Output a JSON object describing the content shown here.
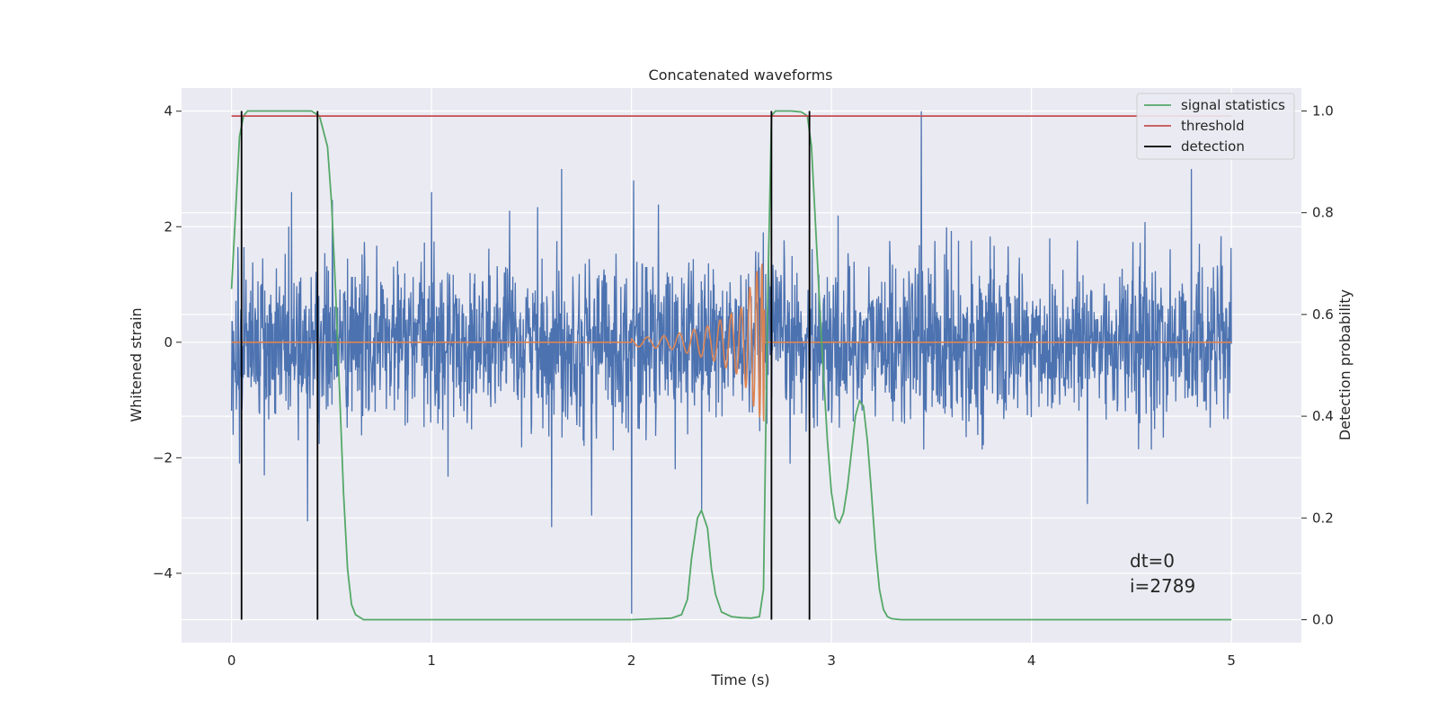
{
  "chart_data": {
    "type": "line",
    "title": "Concatenated waveforms",
    "xlabel": "Time (s)",
    "ylabel_left": "Whitened strain",
    "ylabel_right": "Detection probability",
    "xlim": [
      -0.25,
      5.35
    ],
    "ylim_left": [
      -5.2,
      4.4
    ],
    "ylim_right": [
      -0.045,
      1.045
    ],
    "x_ticks": [
      0,
      1,
      2,
      3,
      4,
      5
    ],
    "y_ticks_left": [
      -4,
      -2,
      0,
      2,
      4
    ],
    "y_ticks_right": [
      0.0,
      0.2,
      0.4,
      0.6,
      0.8,
      1.0
    ],
    "x_tick_labels": [
      "0",
      "1",
      "2",
      "3",
      "4",
      "5"
    ],
    "y_tick_labels_left": [
      "−4",
      "−2",
      "0",
      "2",
      "4"
    ],
    "y_tick_labels_right": [
      "0.0",
      "0.2",
      "0.4",
      "0.6",
      "0.8",
      "1.0"
    ],
    "grid": true,
    "legend_position": "top-right",
    "series": [
      {
        "name": "",
        "axis": "left",
        "color": "#4c72b0",
        "kind": "noise",
        "x_range": [
          0,
          5
        ],
        "envelope_std": 0.7,
        "spikes": [
          {
            "x": 0.04,
            "y": -2.1
          },
          {
            "x": 0.3,
            "y": 2.6
          },
          {
            "x": 0.38,
            "y": -3.1
          },
          {
            "x": 1.0,
            "y": 2.6
          },
          {
            "x": 1.6,
            "y": -3.2
          },
          {
            "x": 1.65,
            "y": 3.0
          },
          {
            "x": 1.8,
            "y": -3.0
          },
          {
            "x": 2.0,
            "y": -4.7
          },
          {
            "x": 2.01,
            "y": 2.8
          },
          {
            "x": 2.35,
            "y": -2.9
          },
          {
            "x": 3.45,
            "y": 4.0
          },
          {
            "x": 4.8,
            "y": 3.0
          },
          {
            "x": 4.28,
            "y": -2.8
          }
        ]
      },
      {
        "name": "",
        "axis": "left",
        "color": "#dd8452",
        "kind": "chirp",
        "x": [
          0,
          2.0,
          2.0,
          2.2,
          2.4,
          2.55,
          2.62,
          2.66,
          2.7,
          5
        ],
        "amplitude": [
          0,
          0,
          0.07,
          0.12,
          0.3,
          0.6,
          1.2,
          1.4,
          0,
          0
        ]
      },
      {
        "name": "signal statistics",
        "axis": "right",
        "color": "#55a868",
        "x": [
          0.0,
          0.02,
          0.04,
          0.06,
          0.08,
          0.12,
          0.4,
          0.44,
          0.48,
          0.5,
          0.52,
          0.54,
          0.56,
          0.58,
          0.6,
          0.62,
          0.66,
          0.8,
          2.0,
          2.2,
          2.25,
          2.28,
          2.3,
          2.33,
          2.35,
          2.38,
          2.4,
          2.42,
          2.45,
          2.5,
          2.55,
          2.6,
          2.64,
          2.66,
          2.68,
          2.7,
          2.72,
          2.74,
          2.8,
          2.85,
          2.88,
          2.9,
          2.92,
          2.95,
          2.98,
          3.0,
          3.02,
          3.04,
          3.06,
          3.08,
          3.1,
          3.12,
          3.14,
          3.16,
          3.18,
          3.2,
          3.22,
          3.24,
          3.26,
          3.28,
          3.3,
          3.35,
          4.0,
          5.0
        ],
        "y": [
          0.65,
          0.8,
          0.95,
          0.99,
          1.0,
          1.0,
          1.0,
          0.99,
          0.93,
          0.82,
          0.65,
          0.45,
          0.25,
          0.1,
          0.03,
          0.01,
          0.0,
          0.0,
          0.0,
          0.003,
          0.01,
          0.04,
          0.12,
          0.2,
          0.215,
          0.18,
          0.1,
          0.05,
          0.015,
          0.006,
          0.004,
          0.003,
          0.006,
          0.06,
          0.6,
          0.99,
          1.0,
          1.0,
          1.0,
          0.998,
          0.99,
          0.93,
          0.78,
          0.55,
          0.35,
          0.25,
          0.2,
          0.19,
          0.21,
          0.26,
          0.33,
          0.4,
          0.43,
          0.42,
          0.35,
          0.25,
          0.14,
          0.06,
          0.02,
          0.006,
          0.002,
          0.0,
          0.0,
          0.0
        ]
      },
      {
        "name": "threshold",
        "axis": "right",
        "color": "#c44e52",
        "x": [
          0.0,
          5.0
        ],
        "y": [
          0.99,
          0.99
        ]
      },
      {
        "name": "detection",
        "axis": "right",
        "color": "#000000",
        "kind": "vlines",
        "x": [
          0.05,
          0.43,
          2.7,
          2.89
        ],
        "y_range": [
          0.0,
          1.0
        ]
      }
    ],
    "annotations": {
      "dt": "dt=0",
      "i": "i=2789",
      "x": 4.5,
      "y_left": -3.7
    }
  }
}
